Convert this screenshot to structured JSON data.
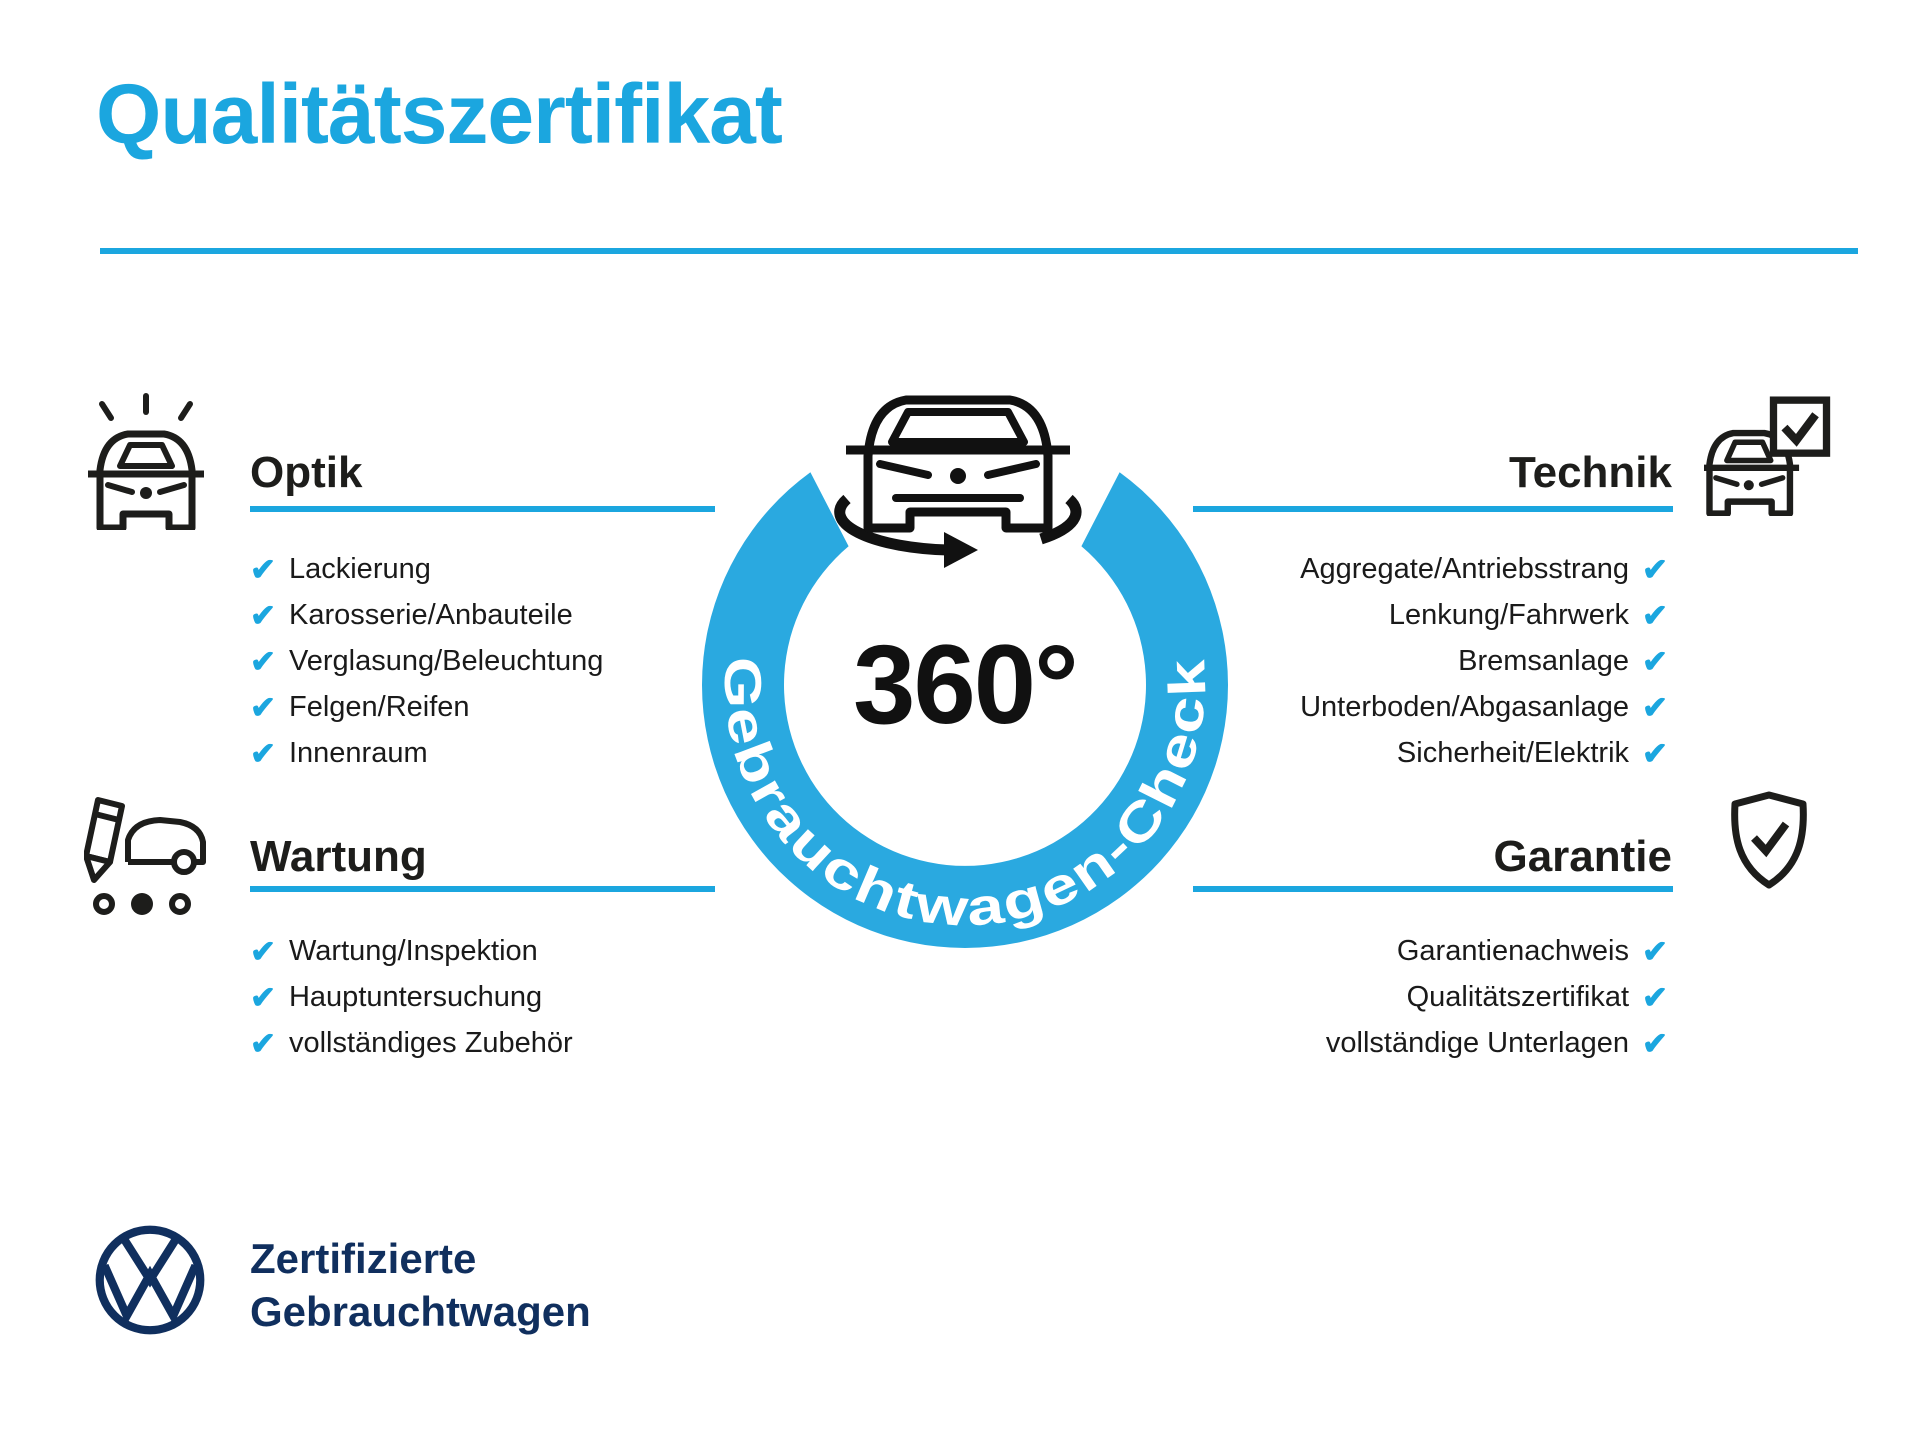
{
  "colors": {
    "accent": "#1BA6DF",
    "ring": "#2AA9E0",
    "ink": "#1D1D1B",
    "navy": "#102F5E"
  },
  "checkmark": "✔",
  "header": {
    "title": "Qualitätszertifikat"
  },
  "badge": {
    "degree_label": "360°",
    "ring_label": "Gebrauchtwagen-Check",
    "icon": "car-rotation-icon"
  },
  "sections": [
    {
      "id": "optik",
      "title": "Optik",
      "icon": "car-shine-icon",
      "side": "left",
      "items": [
        "Lackierung",
        "Karosserie/Anbauteile",
        "Verglasung/Beleuchtung",
        "Felgen/Reifen",
        "Innenraum"
      ]
    },
    {
      "id": "technik",
      "title": "Technik",
      "icon": "car-checkbox-icon",
      "side": "right",
      "items": [
        "Aggregate/Antriebsstrang",
        "Lenkung/Fahrwerk",
        "Bremsanlage",
        "Unterboden/Abgasanlage",
        "Sicherheit/Elektrik"
      ]
    },
    {
      "id": "wartung",
      "title": "Wartung",
      "icon": "pencil-car-icon",
      "side": "left",
      "items": [
        "Wartung/Inspektion",
        "Hauptuntersuchung",
        "vollständiges Zubehör"
      ]
    },
    {
      "id": "garantie",
      "title": "Garantie",
      "icon": "shield-check-icon",
      "side": "right",
      "items": [
        "Garantienachweis",
        "Qualitätszertifikat",
        "vollständige Unterlagen"
      ]
    }
  ],
  "footer": {
    "brand_line1": "Zertifizierte",
    "brand_line2": "Gebrauchtwagen"
  }
}
